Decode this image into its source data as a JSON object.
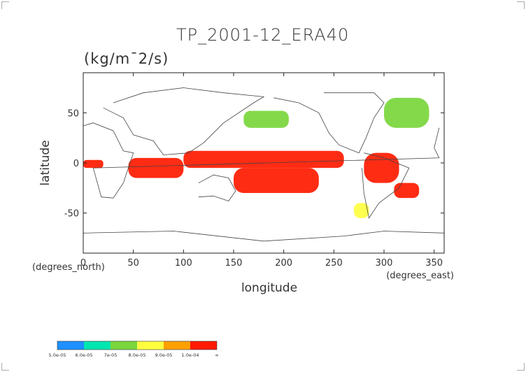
{
  "chart_data": {
    "type": "heatmap",
    "title": "TP_2001-12_ERA40",
    "units": "(kg/m¯2/s)",
    "xlabel": "longitude",
    "ylabel": "latitude",
    "xunit_left": "(degrees_north)",
    "xunit_right": "(degrees_east)",
    "xlim": [
      0,
      360
    ],
    "ylim": [
      -90,
      90
    ],
    "xticks": [
      0,
      50,
      100,
      150,
      200,
      250,
      300,
      350
    ],
    "yticks": [
      -50,
      0,
      50
    ],
    "colorbar": {
      "labels": [
        "5.0e-05",
        "6.0e-05",
        "7e-05",
        "8.0e-05",
        "9.0e-05",
        "1.0e-04",
        "∞"
      ],
      "colors": [
        "#1e90ff",
        "#00e6b0",
        "#7ad63c",
        "#ffff40",
        "#ffa000",
        "#ff1a00"
      ]
    },
    "colors": {
      "coast": "#444444",
      "land": "#ffffff"
    },
    "regions": [
      {
        "lon": [
          100,
          260
        ],
        "lat": [
          -5,
          12
        ],
        "level": 5
      },
      {
        "lon": [
          150,
          235
        ],
        "lat": [
          -30,
          -5
        ],
        "level": 5
      },
      {
        "lon": [
          45,
          100
        ],
        "lat": [
          -15,
          5
        ],
        "level": 5
      },
      {
        "lon": [
          0,
          20
        ],
        "lat": [
          -5,
          3
        ],
        "level": 5
      },
      {
        "lon": [
          280,
          315
        ],
        "lat": [
          -20,
          10
        ],
        "level": 5
      },
      {
        "lon": [
          160,
          205
        ],
        "lat": [
          35,
          52
        ],
        "level": 2
      },
      {
        "lon": [
          300,
          345
        ],
        "lat": [
          35,
          65
        ],
        "level": 2
      },
      {
        "lon": [
          310,
          335
        ],
        "lat": [
          -35,
          -20
        ],
        "level": 5
      },
      {
        "lon": [
          270,
          285
        ],
        "lat": [
          -55,
          -40
        ],
        "level": 3
      }
    ]
  }
}
